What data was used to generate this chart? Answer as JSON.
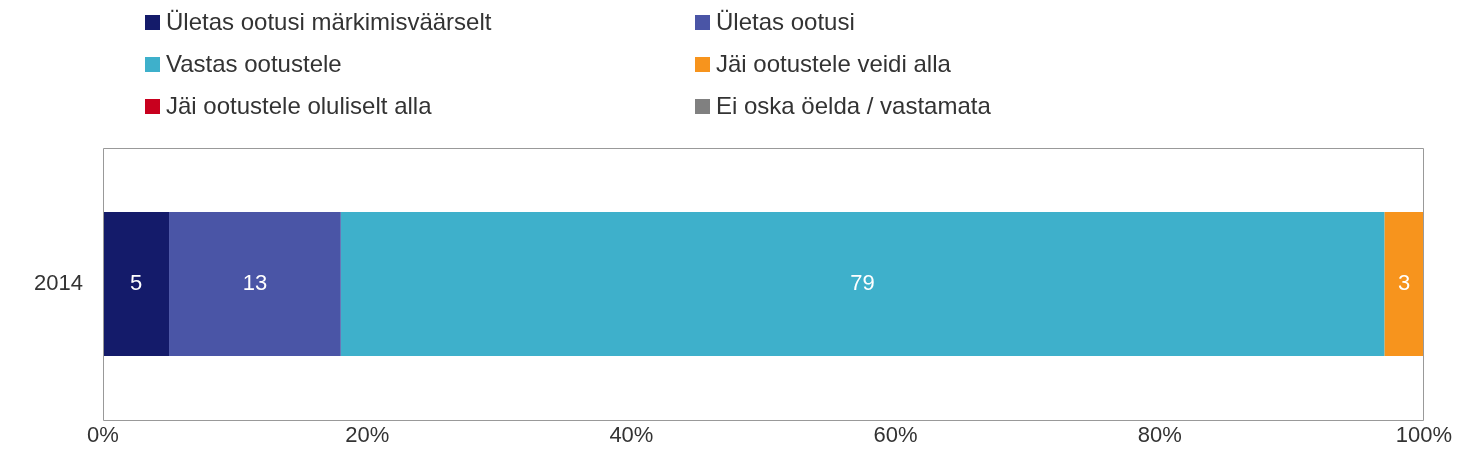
{
  "chart_data": {
    "type": "bar",
    "orientation": "horizontal",
    "stacked": true,
    "categories": [
      "2014"
    ],
    "series": [
      {
        "name": "Ületas ootusi märkimisväärselt",
        "color": "#141b6a",
        "values": [
          5
        ],
        "value_labels": [
          "5"
        ]
      },
      {
        "name": "Ületas ootusi",
        "color": "#4a55a6",
        "values": [
          13
        ],
        "value_labels": [
          "13"
        ]
      },
      {
        "name": "Vastas ootustele",
        "color": "#3eb0cb",
        "values": [
          79
        ],
        "value_labels": [
          "79"
        ]
      },
      {
        "name": "Jäi ootustele veidi alla",
        "color": "#f7941d",
        "values": [
          3
        ],
        "value_labels": [
          "3"
        ]
      },
      {
        "name": "Jäi ootustele oluliselt alla",
        "color": "#c8001e",
        "values": [
          0
        ],
        "value_labels": [
          null
        ]
      },
      {
        "name": "Ei oska öelda / vastamata",
        "color": "#808080",
        "values": [
          0
        ],
        "value_labels": [
          null
        ]
      }
    ],
    "xlim": [
      0,
      100
    ],
    "xticks": [
      {
        "value": 0,
        "label": "0%"
      },
      {
        "value": 20,
        "label": "20%"
      },
      {
        "value": 40,
        "label": "40%"
      },
      {
        "value": 60,
        "label": "60%"
      },
      {
        "value": 80,
        "label": "80%"
      },
      {
        "value": 100,
        "label": "100%"
      }
    ],
    "grid": false,
    "legend": "top"
  }
}
